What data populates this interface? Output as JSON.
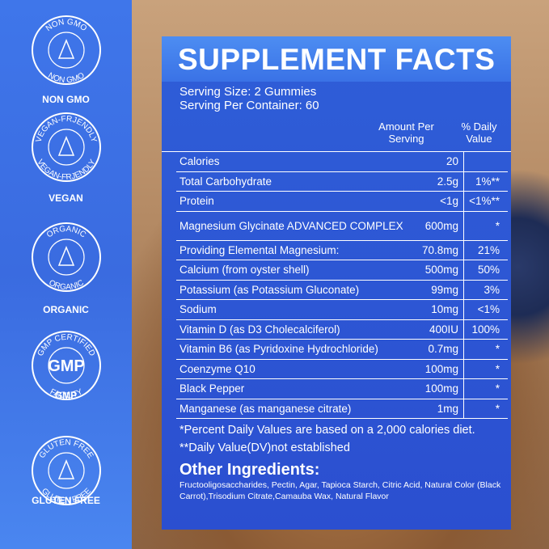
{
  "badges": [
    {
      "ring_top": "NON GMO",
      "ring_bottom": "NON GMO",
      "label": "NON GMO"
    },
    {
      "ring_top": "VEGAN-FRJENDLY",
      "ring_bottom": "VEGAN-FRJENDLY",
      "label": "VEGAN"
    },
    {
      "ring_top": "ORGANIC",
      "ring_bottom": "ORGANIC",
      "label": "ORGANIC"
    },
    {
      "ring_top": "GMP CERTIFIED",
      "center": "GMP",
      "ring_bottom": "FACILITY",
      "label": "GMP"
    },
    {
      "ring_top": "GLUTEN FREE",
      "ring_bottom": "GLUTEN FREE",
      "label": "GLUTEN FREE"
    }
  ],
  "panel": {
    "title": "SUPPLEMENT FACTS",
    "serving_size": "Serving Size: 2 Gummies",
    "servings": "Serving Per Container: 60",
    "header_amount": "Amount Per Serving",
    "header_dv": "% Daily Value",
    "rows": [
      {
        "name": "Calories",
        "amount": "20"
      },
      {
        "name": "Total Carbohydrate",
        "amount": "2.5g",
        "dv": "1%**"
      },
      {
        "name": "Protein",
        "amount": "<1g",
        "dv": "<1%**"
      },
      {
        "name": "Magnesium Glycinate ADVANCED COMPLEX",
        "amount": "600mg",
        "dv": "*"
      },
      {
        "name": "Providing Elemental Magnesium:",
        "amount": "70.8mg",
        "dv": "21%"
      },
      {
        "name": "Calcium (from oyster shell)",
        "amount": "500mg",
        "dv": "50%"
      },
      {
        "name": "Potassium (as Potassium Gluconate)",
        "amount": "99mg",
        "dv": "3%"
      },
      {
        "name": "Sodium",
        "amount": "10mg",
        "dv": "<1%"
      },
      {
        "name": "Vitamin D (as D3 Cholecalciferol)",
        "amount": "400IU",
        "dv": "100%"
      },
      {
        "name": "Vitamin B6 (as Pyridoxine Hydrochloride)",
        "amount": "0.7mg",
        "dv": "*"
      },
      {
        "name": "Coenzyme Q10",
        "amount": "100mg",
        "dv": "*"
      },
      {
        "name": "Black Pepper",
        "amount": "100mg",
        "dv": "*"
      },
      {
        "name": "Manganese (as manganese citrate)",
        "amount": "1mg",
        "dv": "*"
      }
    ],
    "footnote_1": "*Percent Daily Values are based on a 2,000 calories diet.",
    "footnote_2": "**Daily Value(DV)not established",
    "other_title": "Other Ingredients:",
    "other_text": "Fructooligosaccharides, Pectin, Agar, Tapioca Starch, Citric Acid, Natural Color (Black Carrot),Trisodium Citrate,Camauba Wax, Natural Flavor"
  }
}
